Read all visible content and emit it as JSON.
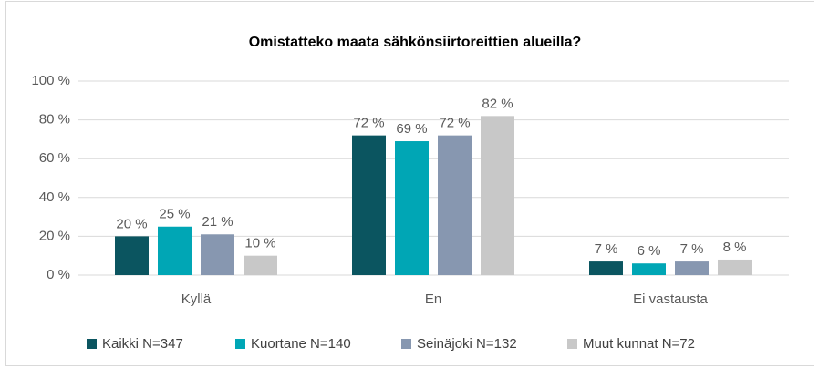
{
  "chart_data": {
    "type": "bar",
    "title": "Omistatteko maata sähkönsiirtoreittien alueilla?",
    "categories": [
      "Kyllä",
      "En",
      "Ei vastausta"
    ],
    "series": [
      {
        "name": "Kaikki N=347",
        "color": "#0b5560",
        "values": [
          20,
          72,
          7
        ],
        "value_labels": [
          "20 %",
          "72 %",
          "7 %"
        ]
      },
      {
        "name": "Kuortane N=140",
        "color": "#00a6b5",
        "values": [
          25,
          69,
          6
        ],
        "value_labels": [
          "25 %",
          "69 %",
          "6 %"
        ]
      },
      {
        "name": "Seinäjoki N=132",
        "color": "#8797b0",
        "values": [
          21,
          72,
          7
        ],
        "value_labels": [
          "21 %",
          "72 %",
          "7 %"
        ]
      },
      {
        "name": "Muut kunnat N=72",
        "color": "#c8c8c8",
        "values": [
          10,
          82,
          8
        ],
        "value_labels": [
          "10 %",
          "82 %",
          "8 %"
        ]
      }
    ],
    "ylim": [
      0,
      100
    ],
    "yticks": [
      {
        "value": 0,
        "label": "0 %"
      },
      {
        "value": 20,
        "label": "20 %"
      },
      {
        "value": 40,
        "label": "40 %"
      },
      {
        "value": 60,
        "label": "60 %"
      },
      {
        "value": 80,
        "label": "80 %"
      },
      {
        "value": 100,
        "label": "100 %"
      }
    ],
    "grid": true,
    "legend": "bottom"
  }
}
